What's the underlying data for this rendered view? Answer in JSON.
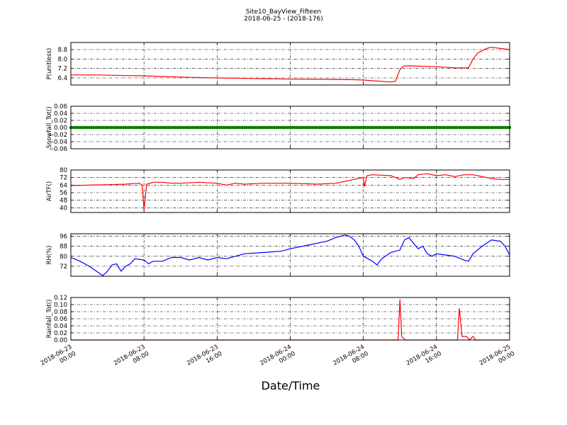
{
  "chart_data": {
    "title": "Site10_BayView_Fifteen",
    "subtitle": "2018-06-25 - (2018-176)",
    "xlabel": "Date/Time",
    "x_ticks": [
      [
        "2018-06-23",
        "00:00"
      ],
      [
        "2018-06-23",
        "08:00"
      ],
      [
        "2018-06-23",
        "16:00"
      ],
      [
        "2018-06-24",
        "00:00"
      ],
      [
        "2018-06-24",
        "08:00"
      ],
      [
        "2018-06-24",
        "16:00"
      ],
      [
        "2018-06-25",
        "00:00"
      ]
    ],
    "x_range_hours": [
      0,
      48
    ],
    "grid": true,
    "panels": [
      {
        "type": "line",
        "ylabel": "P(unitless)",
        "ylim": [
          5.8,
          9.4
        ],
        "y_ticks": [
          "6.4",
          "7.2",
          "8.0",
          "8.8"
        ],
        "color": "#ff0000",
        "points": [
          [
            0,
            6.65
          ],
          [
            3,
            6.65
          ],
          [
            6,
            6.6
          ],
          [
            8,
            6.58
          ],
          [
            10,
            6.52
          ],
          [
            13,
            6.45
          ],
          [
            16,
            6.4
          ],
          [
            20,
            6.35
          ],
          [
            24,
            6.3
          ],
          [
            28,
            6.28
          ],
          [
            31,
            6.25
          ],
          [
            32,
            6.22
          ],
          [
            35,
            6.05
          ],
          [
            35.5,
            6.1
          ],
          [
            36,
            7.1
          ],
          [
            36.4,
            7.4
          ],
          [
            37,
            7.42
          ],
          [
            40,
            7.35
          ],
          [
            42,
            7.25
          ],
          [
            43.5,
            7.25
          ],
          [
            44,
            8.0
          ],
          [
            44.5,
            8.5
          ],
          [
            45.5,
            8.9
          ],
          [
            46,
            9.0
          ],
          [
            48,
            8.8
          ]
        ]
      },
      {
        "type": "scatter",
        "ylabel": "Snowfall_Tot()",
        "ylim": [
          -0.06,
          0.06
        ],
        "y_ticks": [
          "−0.06",
          "−0.04",
          "−0.02",
          "0.00",
          "0.02",
          "0.04",
          "0.06"
        ],
        "color": "#008000",
        "value": 0.0
      },
      {
        "type": "line",
        "ylabel": "AirTF()",
        "ylim": [
          35,
          80
        ],
        "y_ticks": [
          "40",
          "48",
          "56",
          "64",
          "72",
          "80"
        ],
        "color": "#ff0000",
        "points": [
          [
            0,
            63.5
          ],
          [
            2,
            64
          ],
          [
            4,
            64.5
          ],
          [
            6,
            65
          ],
          [
            7.5,
            66
          ],
          [
            7.8,
            64
          ],
          [
            8.0,
            38
          ],
          [
            8.3,
            65
          ],
          [
            9,
            67
          ],
          [
            10,
            67
          ],
          [
            11,
            66
          ],
          [
            12,
            66
          ],
          [
            14,
            67
          ],
          [
            16,
            66
          ],
          [
            17,
            64
          ],
          [
            18,
            66
          ],
          [
            19,
            65
          ],
          [
            21,
            66
          ],
          [
            24,
            66
          ],
          [
            27,
            65
          ],
          [
            29,
            66
          ],
          [
            31,
            70
          ],
          [
            32,
            72
          ],
          [
            32.1,
            62
          ],
          [
            32.4,
            74
          ],
          [
            33,
            75
          ],
          [
            35,
            74
          ],
          [
            36,
            70
          ],
          [
            36.5,
            72
          ],
          [
            37.5,
            71
          ],
          [
            38,
            75
          ],
          [
            39,
            76
          ],
          [
            40,
            74
          ],
          [
            41,
            75
          ],
          [
            42,
            73
          ],
          [
            43,
            75
          ],
          [
            44,
            75
          ],
          [
            45,
            73
          ],
          [
            46,
            71
          ],
          [
            47,
            70
          ],
          [
            48,
            70
          ]
        ]
      },
      {
        "type": "line",
        "ylabel": "RH(%)",
        "ylim": [
          64,
          98
        ],
        "y_ticks": [
          "72",
          "80",
          "88",
          "96"
        ],
        "color": "#0000ff",
        "points": [
          [
            0,
            79
          ],
          [
            1,
            76
          ],
          [
            2,
            72
          ],
          [
            3,
            67
          ],
          [
            3.5,
            64.5
          ],
          [
            4,
            68
          ],
          [
            4.5,
            73
          ],
          [
            5,
            74
          ],
          [
            5.5,
            68
          ],
          [
            6,
            72
          ],
          [
            6.5,
            74
          ],
          [
            7,
            78
          ],
          [
            8,
            77
          ],
          [
            8.5,
            74
          ],
          [
            9,
            76
          ],
          [
            10,
            76
          ],
          [
            11,
            79
          ],
          [
            12,
            79
          ],
          [
            13,
            77
          ],
          [
            14,
            79
          ],
          [
            15,
            77
          ],
          [
            16,
            79
          ],
          [
            17,
            78
          ],
          [
            18,
            80
          ],
          [
            19,
            82
          ],
          [
            21,
            83
          ],
          [
            23,
            84
          ],
          [
            24,
            86
          ],
          [
            26,
            89
          ],
          [
            28,
            92
          ],
          [
            29,
            95
          ],
          [
            30,
            97
          ],
          [
            30.5,
            96
          ],
          [
            31,
            93
          ],
          [
            31.5,
            88
          ],
          [
            32,
            80
          ],
          [
            32.5,
            78
          ],
          [
            33,
            76
          ],
          [
            33.5,
            73
          ],
          [
            34,
            78
          ],
          [
            35,
            83
          ],
          [
            36,
            85
          ],
          [
            36.5,
            93
          ],
          [
            37,
            95
          ],
          [
            37.3,
            92
          ],
          [
            38,
            86
          ],
          [
            38.5,
            88
          ],
          [
            39,
            82
          ],
          [
            39.5,
            80
          ],
          [
            40,
            82
          ],
          [
            41,
            81
          ],
          [
            42,
            80
          ],
          [
            43,
            77
          ],
          [
            43.5,
            76
          ],
          [
            44,
            82
          ],
          [
            45,
            88
          ],
          [
            46,
            93
          ],
          [
            47,
            92
          ],
          [
            47.5,
            88
          ],
          [
            48,
            81
          ]
        ]
      },
      {
        "type": "line",
        "ylabel": "Rainfall_Tot()",
        "ylim": [
          0,
          0.12
        ],
        "y_ticks": [
          "0.00",
          "0.02",
          "0.04",
          "0.06",
          "0.08",
          "0.10",
          "0.12"
        ],
        "color": "#ff0000",
        "points": [
          [
            0,
            0
          ],
          [
            35.8,
            0
          ],
          [
            36.0,
            0.115
          ],
          [
            36.2,
            0.01
          ],
          [
            36.6,
            0
          ],
          [
            42.3,
            0
          ],
          [
            42.5,
            0.09
          ],
          [
            42.8,
            0.01
          ],
          [
            43.3,
            0.01
          ],
          [
            43.6,
            0
          ],
          [
            44.0,
            0.01
          ],
          [
            44.3,
            0
          ],
          [
            48,
            0
          ]
        ]
      }
    ]
  }
}
